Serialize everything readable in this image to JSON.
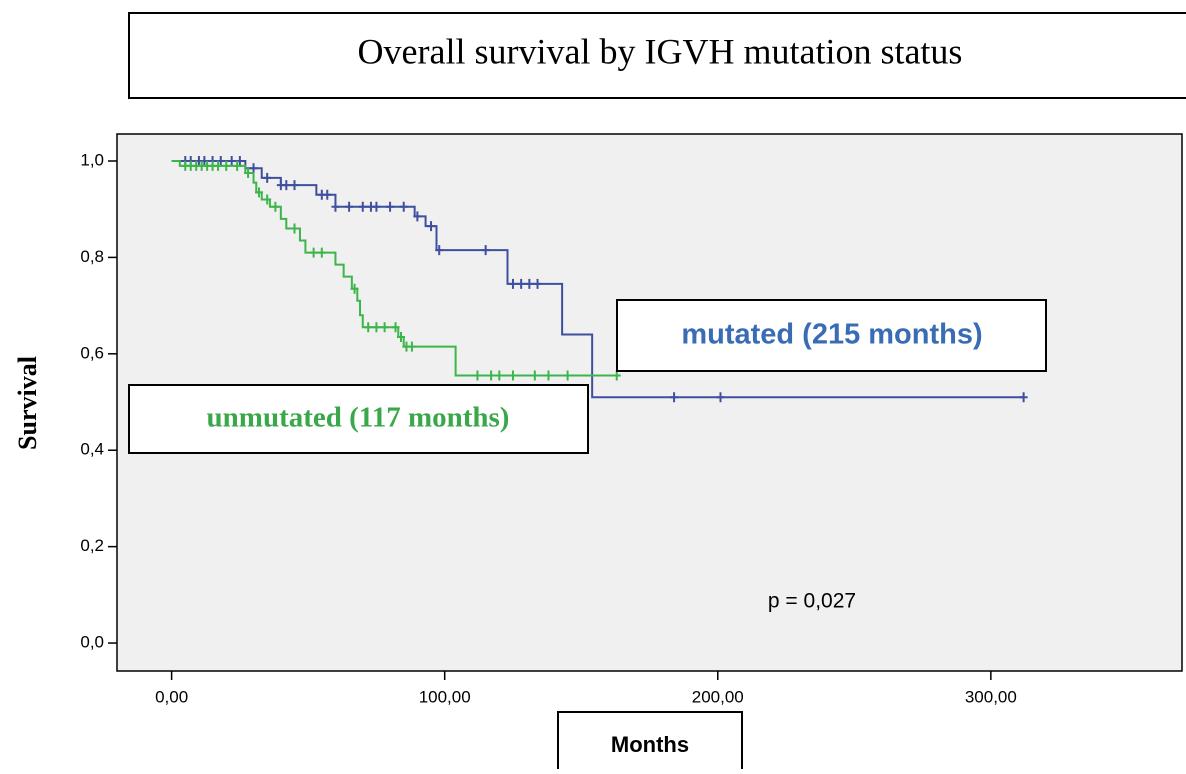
{
  "chart_data": {
    "type": "line",
    "step": true,
    "title": "Overall survival by IGVH mutation status",
    "x_label": "Months",
    "y_label": "Survival",
    "xlim": [
      -20,
      370
    ],
    "ylim": [
      -0.058,
      1.056
    ],
    "xticks": [
      {
        "value": 0,
        "label": "0,00"
      },
      {
        "value": 100,
        "label": "100,00"
      },
      {
        "value": 200,
        "label": "200,00"
      },
      {
        "value": 300,
        "label": "300,00"
      }
    ],
    "yticks": [
      {
        "value": 0,
        "label": "0,0"
      },
      {
        "value": 0.2,
        "label": "0,2"
      },
      {
        "value": 0.4,
        "label": "0,4"
      },
      {
        "value": 0.6,
        "label": "0,6"
      },
      {
        "value": 0.8,
        "label": "0,8"
      },
      {
        "value": 1,
        "label": "1,0"
      }
    ],
    "series": [
      {
        "color": "#3f4fa0",
        "x": [
          0,
          27,
          33,
          40,
          53,
          60,
          89,
          93,
          97,
          123,
          143,
          154,
          312
        ],
        "values": [
          1.0,
          0.985,
          0.965,
          0.95,
          0.93,
          0.905,
          0.885,
          0.865,
          0.815,
          0.745,
          0.64,
          0.51,
          0.51
        ],
        "censored_x": [
          5,
          7,
          10,
          12,
          15,
          18,
          22,
          25,
          30,
          35,
          40,
          42,
          45,
          55,
          57,
          60,
          65,
          70,
          73,
          75,
          80,
          85,
          90,
          95,
          98,
          115,
          125,
          128,
          131,
          134,
          184,
          201,
          312
        ],
        "censored_values": [
          1,
          1,
          1,
          1,
          1,
          1,
          1,
          1,
          0.985,
          0.965,
          0.95,
          0.95,
          0.95,
          0.93,
          0.93,
          0.905,
          0.905,
          0.905,
          0.905,
          0.905,
          0.905,
          0.905,
          0.885,
          0.865,
          0.815,
          0.815,
          0.745,
          0.745,
          0.745,
          0.745,
          0.51,
          0.51,
          0.51
        ]
      },
      {
        "color": "#3db54a",
        "x": [
          0,
          3,
          27,
          30,
          31,
          33,
          36,
          40,
          42,
          47,
          49,
          60,
          63,
          66,
          68,
          69,
          70,
          83,
          85,
          104,
          163
        ],
        "values": [
          1.0,
          0.99,
          0.975,
          0.955,
          0.935,
          0.92,
          0.905,
          0.88,
          0.86,
          0.835,
          0.81,
          0.785,
          0.76,
          0.735,
          0.71,
          0.68,
          0.655,
          0.635,
          0.615,
          0.555,
          0.555
        ],
        "censored_x": [
          5,
          7,
          9,
          11,
          13,
          15,
          17,
          20,
          24,
          28,
          32,
          35,
          38,
          45,
          52,
          55,
          67,
          72,
          75,
          78,
          82,
          84,
          86,
          88,
          112,
          117,
          120,
          125,
          133,
          138,
          145,
          163
        ],
        "censored_values": [
          0.99,
          0.99,
          0.99,
          0.99,
          0.99,
          0.99,
          0.99,
          0.99,
          0.99,
          0.975,
          0.935,
          0.92,
          0.905,
          0.86,
          0.81,
          0.81,
          0.735,
          0.655,
          0.655,
          0.655,
          0.655,
          0.635,
          0.615,
          0.615,
          0.555,
          0.555,
          0.555,
          0.555,
          0.555,
          0.555,
          0.555,
          0.555
        ]
      }
    ],
    "annotations": [
      {
        "text": "mutated (215 months)",
        "color": "#3a6cb5"
      },
      {
        "text": "unmutated (117 months)",
        "color": "#3aa84a"
      },
      {
        "text": "p = 0,027"
      }
    ]
  }
}
